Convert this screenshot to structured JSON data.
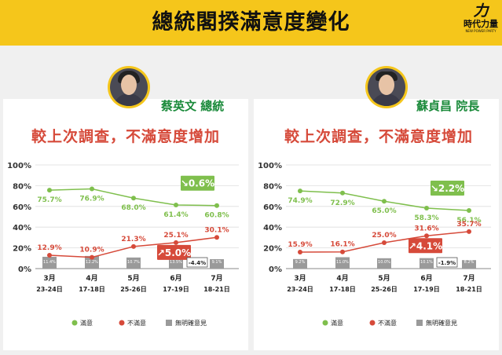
{
  "header": {
    "title": "總統閣揆滿意度變化"
  },
  "logo": {
    "mark": "力",
    "name": "時代力量",
    "sub": "NEW POWER PARTY"
  },
  "colors": {
    "satisfied": "#7fbf4d",
    "dissatisfied": "#d64a3a",
    "unknown": "#9a9a9a",
    "accent": "#f5c61b"
  },
  "panels": [
    {
      "person": "蔡英文 總統",
      "subtitle": "較上次調查，不滿意度增加",
      "legend": [
        "滿意",
        "不滿意",
        "無明確意見"
      ]
    },
    {
      "person": "蘇貞昌 院長",
      "subtitle": "較上次調查，不滿意度增加",
      "legend": [
        "滿意",
        "不滿意",
        "無明確意見"
      ]
    }
  ],
  "chart_data": [
    {
      "type": "line",
      "categories": [
        "3月",
        "4月",
        "5月",
        "6月",
        "7月"
      ],
      "category_dates": [
        "23-24日",
        "17-18日",
        "25-26日",
        "17-19日",
        "18-21日"
      ],
      "y_ticks": [
        "0%",
        "20%",
        "40%",
        "60%",
        "80%",
        "100%"
      ],
      "ylim": [
        0,
        100
      ],
      "grid": true,
      "legend_position": "bottom",
      "series": [
        {
          "name": "滿意",
          "type": "line",
          "values": [
            75.7,
            76.9,
            68.0,
            61.4,
            60.8
          ],
          "labels": [
            "75.7%",
            "76.9%",
            "68.0%",
            "61.4%",
            "60.8%"
          ]
        },
        {
          "name": "不滿意",
          "type": "line",
          "values": [
            12.9,
            10.9,
            21.3,
            25.1,
            30.1
          ],
          "labels": [
            "12.9%",
            "10.9%",
            "21.3%",
            "25.1%",
            "30.1%"
          ]
        },
        {
          "name": "無明確意見",
          "type": "bar",
          "values": [
            11.4,
            12.2,
            10.7,
            13.5,
            9.1
          ],
          "labels": [
            "11.4%",
            "12.2%",
            "10.7%",
            "13.5%",
            "9.1%"
          ]
        }
      ],
      "annotations": {
        "satisfied_change": "↘0.6%",
        "dissatisfied_change": "↗5.0%",
        "unknown_change": "-4.4%"
      }
    },
    {
      "type": "line",
      "categories": [
        "3月",
        "4月",
        "5月",
        "6月",
        "7月"
      ],
      "category_dates": [
        "23-24日",
        "17-18日",
        "25-26日",
        "17-19日",
        "18-21日"
      ],
      "y_ticks": [
        "0%",
        "20%",
        "40%",
        "60%",
        "80%",
        "100%"
      ],
      "ylim": [
        0,
        100
      ],
      "grid": true,
      "legend_position": "bottom",
      "series": [
        {
          "name": "滿意",
          "type": "line",
          "values": [
            74.9,
            72.9,
            65.0,
            58.3,
            56.1
          ],
          "labels": [
            "74.9%",
            "72.9%",
            "65.0%",
            "58.3%",
            "56.1%"
          ]
        },
        {
          "name": "不滿意",
          "type": "line",
          "values": [
            15.9,
            16.1,
            25.0,
            31.6,
            35.7
          ],
          "labels": [
            "15.9%",
            "16.1%",
            "25.0%",
            "31.6%",
            "35.7%"
          ]
        },
        {
          "name": "無明確意見",
          "type": "bar",
          "values": [
            9.2,
            11.0,
            10.0,
            10.1,
            8.2
          ],
          "labels": [
            "9.2%",
            "11.0%",
            "10.0%",
            "10.1%",
            "8.2%"
          ]
        }
      ],
      "annotations": {
        "satisfied_change": "↘2.2%",
        "dissatisfied_change": "↗4.1%",
        "unknown_change": "-1.9%"
      }
    }
  ]
}
